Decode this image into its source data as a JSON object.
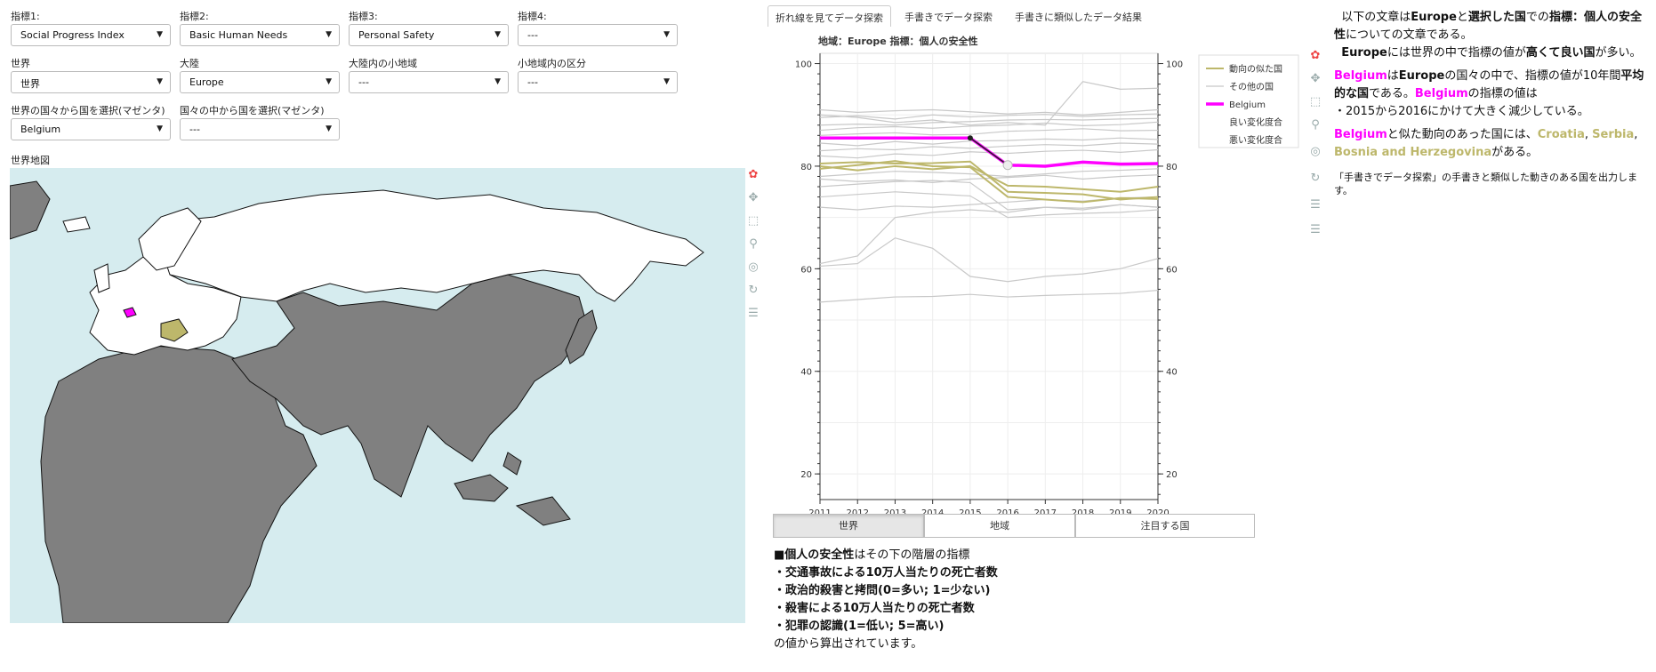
{
  "controls": {
    "ind1": {
      "label": "指標1:",
      "value": "Social Progress Index"
    },
    "ind2": {
      "label": "指標2:",
      "value": "Basic Human Needs"
    },
    "ind3": {
      "label": "指標3:",
      "value": "Personal Safety"
    },
    "ind4": {
      "label": "指標4:",
      "value": "---"
    },
    "world": {
      "label": "世界",
      "value": "世界"
    },
    "continent": {
      "label": "大陸",
      "value": "Europe"
    },
    "subregion": {
      "label": "大陸内の小地域",
      "value": "---"
    },
    "division": {
      "label": "小地域内の区分",
      "value": "---"
    },
    "country_world": {
      "label": "世界の国々から国を選択(マゼンタ)",
      "value": "Belgium"
    },
    "country_region": {
      "label": "国々の中から国を選択(マゼンタ)",
      "value": "---"
    }
  },
  "map": {
    "title": "世界地図",
    "ocean_color": "#d6ecef",
    "land_color": "#808080",
    "region_color": "#ffffff",
    "selected_color": "#ff00ff",
    "similar_color": "#bdb76b"
  },
  "tabs": [
    "折れ線を見てデータ探索",
    "手書きでデータ探索",
    "手書きに類似したデータ結果"
  ],
  "chart_title": "地域：Europe  指標：個人の安全性",
  "legend": {
    "similar": "動向の似た国",
    "other": "その他の国",
    "selected": "Belgium",
    "good": "良い変化度合",
    "bad": "悪い変化度合"
  },
  "chart_data": {
    "type": "line",
    "x": [
      2011,
      2012,
      2013,
      2014,
      2015,
      2016,
      2017,
      2018,
      2019,
      2020
    ],
    "xlim": [
      2011,
      2020
    ],
    "ylim": [
      15,
      102
    ],
    "yticks": [
      20,
      40,
      60,
      80,
      100
    ],
    "xticks": [
      "2011",
      "2012",
      "2013",
      "2014",
      "2015",
      "2016",
      "2017",
      "2018",
      "2019",
      "2020"
    ],
    "selected": {
      "name": "Belgium",
      "color": "#ff00ff",
      "values": [
        85.5,
        85.5,
        85.5,
        85.5,
        85.5,
        80.2,
        80.0,
        80.8,
        80.4,
        80.5
      ]
    },
    "similar": [
      {
        "values": [
          80.5,
          80.8,
          80.5,
          80.6,
          80.9,
          75.0,
          74.8,
          74.5,
          73.5,
          74.0
        ]
      },
      {
        "values": [
          79.5,
          80.2,
          81.0,
          80.0,
          79.8,
          74.0,
          73.5,
          73.0,
          73.8,
          73.6
        ]
      },
      {
        "values": [
          80.0,
          79.2,
          80.0,
          79.4,
          80.0,
          76.2,
          76.0,
          75.5,
          75.0,
          76.0
        ]
      }
    ],
    "others": [
      [
        88.0,
        88.2,
        88.0,
        88.5,
        88.7,
        89.0,
        89.1,
        89.0,
        89.2,
        89.3
      ],
      [
        87.0,
        87.5,
        87.7,
        87.4,
        87.8,
        88.0,
        88.4,
        87.9,
        88.1,
        88.6
      ],
      [
        86.0,
        86.3,
        86.5,
        86.1,
        86.2,
        86.8,
        87.0,
        87.3,
        86.9,
        87.0
      ],
      [
        89.5,
        89.8,
        89.2,
        90.0,
        89.6,
        89.9,
        90.1,
        89.7,
        90.0,
        90.2
      ],
      [
        84.5,
        84.0,
        84.8,
        84.3,
        84.9,
        85.0,
        85.3,
        85.1,
        85.5,
        85.2
      ],
      [
        83.0,
        83.4,
        83.2,
        83.8,
        83.5,
        83.9,
        84.2,
        84.0,
        84.5,
        84.3
      ],
      [
        82.0,
        81.6,
        82.4,
        82.1,
        82.8,
        82.5,
        82.9,
        83.1,
        82.7,
        83.2
      ],
      [
        78.0,
        78.5,
        79.0,
        78.8,
        78.5,
        78.0,
        78.5,
        79.0,
        79.2,
        79.5
      ],
      [
        76.0,
        76.5,
        77.0,
        77.2,
        76.8,
        71.5,
        72.0,
        71.8,
        72.5,
        72.0
      ],
      [
        74.0,
        74.5,
        75.0,
        74.6,
        74.2,
        70.0,
        70.5,
        70.8,
        71.0,
        71.5
      ],
      [
        72.0,
        71.5,
        72.2,
        72.0,
        72.5,
        73.0,
        73.5,
        73.2,
        73.8,
        74.0
      ],
      [
        61.0,
        62.5,
        70.0,
        71.0,
        71.5,
        71.0,
        72.0,
        71.5,
        72.5,
        72.0
      ],
      [
        60.5,
        61.0,
        66.0,
        64.0,
        58.5,
        57.5,
        58.5,
        59.0,
        60.0,
        62.0
      ],
      [
        53.5,
        54.0,
        54.5,
        54.6,
        55.0,
        54.5,
        54.8,
        55.0,
        55.2,
        55.8
      ],
      [
        90.0,
        89.5,
        88.5,
        89.0,
        88.0,
        88.5,
        88.0,
        96.5,
        95.0,
        95.2
      ],
      [
        91.0,
        90.5,
        90.8,
        91.0,
        90.6,
        90.2,
        90.5,
        90.0,
        90.5,
        91.0
      ],
      [
        77.5,
        77.0,
        77.3,
        76.8,
        77.5,
        77.8,
        78.2,
        77.5,
        78.0,
        78.3
      ]
    ],
    "colors": {
      "selected": "#ff00ff",
      "similar": "#bdb76b",
      "other": "#c8c8c8"
    }
  },
  "buttons": {
    "world": "世界",
    "region": "地域",
    "focus": "注目する国"
  },
  "desc": {
    "title": "個人の安全性",
    "title_suffix": "はその下の階層の指標",
    "items": [
      "・交通事故による10万人当たりの死亡者数",
      "・政治的殺害と拷問(0=多い; 1=少ない)",
      "・殺害による10万人当たりの死亡者数",
      "・犯罪の認識(1=低い; 5=高い)"
    ],
    "footer": "の値から算出されています。"
  },
  "summary": {
    "p1_a": "以下の文章は",
    "p1_region": "Europe",
    "p1_b": "と",
    "p1_sel": "選択した国",
    "p1_c": "での",
    "p1_ind": "指標：個人の安全性",
    "p1_d": "についての文章である。",
    "p2_region": "Europe",
    "p2_a": "には世界の中で指標の値が",
    "p2_b": "高くて良い国",
    "p2_c": "が多い。",
    "p3_country": "Belgium",
    "p3_a": "は",
    "p3_region": "Europe",
    "p3_b": "の国々の中で、指標の値が10年間",
    "p3_c": "平均的な国",
    "p3_d": "である。",
    "p3_country2": "Belgium",
    "p3_e": "の指標の値は",
    "p3_item": "・2015から2016にかけて大きく減少している。",
    "p4_country": "Belgium",
    "p4_a": "と似た動向のあった国には、",
    "p4_c1": "Croatia",
    "p4_c2": "Serbia",
    "p4_c3": "Bosnia and Herzegovina",
    "p4_b": "がある。",
    "note": "「手書きでデータ探索」の手書きと類似した動きのある国を出力します。"
  }
}
